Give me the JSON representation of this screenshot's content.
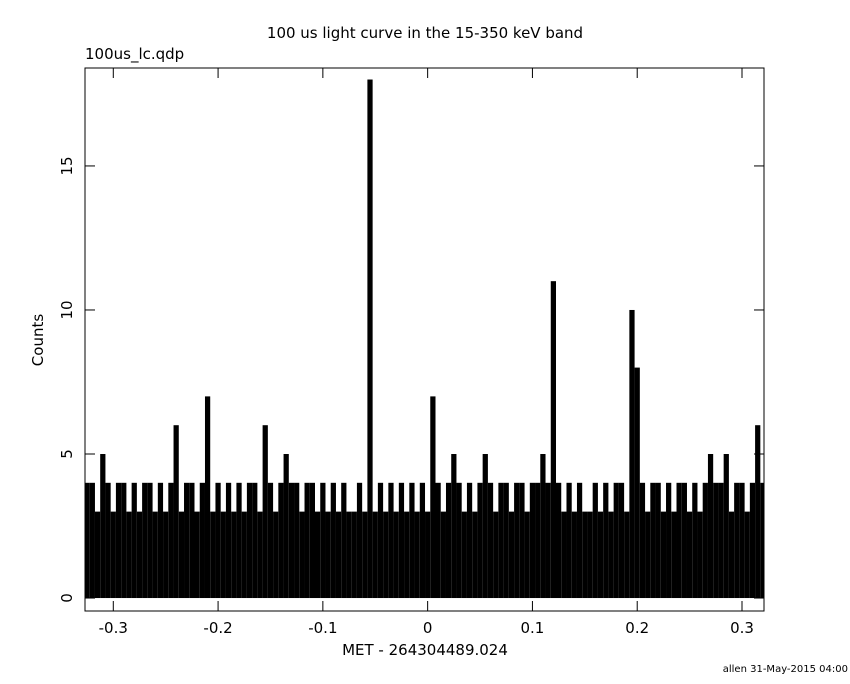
{
  "chart_data": {
    "type": "histogram-step",
    "title": "100 us light curve in the 15-350 keV band",
    "subtitle": "100us_lc.qdp",
    "x_label": "MET - 264304489.024",
    "y_label": "Counts",
    "footer": "allen 31-May-2015 04:00",
    "color": "#000000",
    "xlim": [
      -0.327,
      0.321
    ],
    "ylim": [
      -0.45,
      18.4
    ],
    "xticks": [
      -0.3,
      -0.2,
      -0.1,
      0,
      0.1,
      0.2,
      0.3
    ],
    "yticks": [
      0,
      5,
      10,
      15
    ],
    "x": [
      -0.325,
      -0.32,
      -0.315,
      -0.31,
      -0.305,
      -0.3,
      -0.295,
      -0.29,
      -0.285,
      -0.28,
      -0.275,
      -0.27,
      -0.265,
      -0.26,
      -0.255,
      -0.25,
      -0.245,
      -0.24,
      -0.235,
      -0.23,
      -0.225,
      -0.22,
      -0.215,
      -0.21,
      -0.205,
      -0.2,
      -0.195,
      -0.19,
      -0.185,
      -0.18,
      -0.175,
      -0.17,
      -0.165,
      -0.16,
      -0.155,
      -0.15,
      -0.145,
      -0.14,
      -0.135,
      -0.13,
      -0.125,
      -0.12,
      -0.115,
      -0.11,
      -0.105,
      -0.1,
      -0.095,
      -0.09,
      -0.085,
      -0.08,
      -0.075,
      -0.07,
      -0.065,
      -0.06,
      -0.055,
      -0.05,
      -0.045,
      -0.04,
      -0.035,
      -0.03,
      -0.025,
      -0.02,
      -0.015,
      -0.01,
      -0.005,
      0,
      0.005,
      0.01,
      0.015,
      0.02,
      0.025,
      0.03,
      0.035,
      0.04,
      0.045,
      0.05,
      0.055,
      0.06,
      0.065,
      0.07,
      0.075,
      0.08,
      0.085,
      0.09,
      0.095,
      0.1,
      0.105,
      0.11,
      0.115,
      0.12,
      0.125,
      0.13,
      0.135,
      0.14,
      0.145,
      0.15,
      0.155,
      0.16,
      0.165,
      0.17,
      0.175,
      0.18,
      0.185,
      0.19,
      0.195,
      0.2,
      0.205,
      0.21,
      0.215,
      0.22,
      0.225,
      0.23,
      0.235,
      0.24,
      0.245,
      0.25,
      0.255,
      0.26,
      0.265,
      0.27,
      0.275,
      0.28,
      0.285,
      0.29,
      0.295,
      0.3,
      0.305,
      0.31,
      0.315,
      0.32
    ],
    "values": [
      4,
      4,
      3,
      5,
      4,
      3,
      4,
      4,
      3,
      4,
      3,
      4,
      4,
      3,
      4,
      3,
      4,
      6,
      3,
      4,
      4,
      3,
      4,
      7,
      3,
      4,
      3,
      4,
      3,
      4,
      3,
      4,
      4,
      3,
      6,
      4,
      3,
      4,
      5,
      4,
      4,
      3,
      4,
      4,
      3,
      4,
      3,
      4,
      3,
      4,
      3,
      3,
      4,
      3,
      18,
      3,
      4,
      3,
      4,
      3,
      4,
      3,
      4,
      3,
      4,
      3,
      7,
      4,
      3,
      4,
      5,
      4,
      3,
      4,
      3,
      4,
      5,
      4,
      3,
      4,
      4,
      3,
      4,
      4,
      3,
      4,
      4,
      5,
      4,
      11,
      4,
      3,
      4,
      3,
      4,
      3,
      3,
      4,
      3,
      4,
      3,
      4,
      4,
      3,
      10,
      8,
      4,
      3,
      4,
      4,
      3,
      4,
      3,
      4,
      4,
      3,
      4,
      3,
      4,
      5,
      4,
      4,
      5,
      3,
      4,
      4,
      3,
      4,
      6,
      4
    ]
  }
}
